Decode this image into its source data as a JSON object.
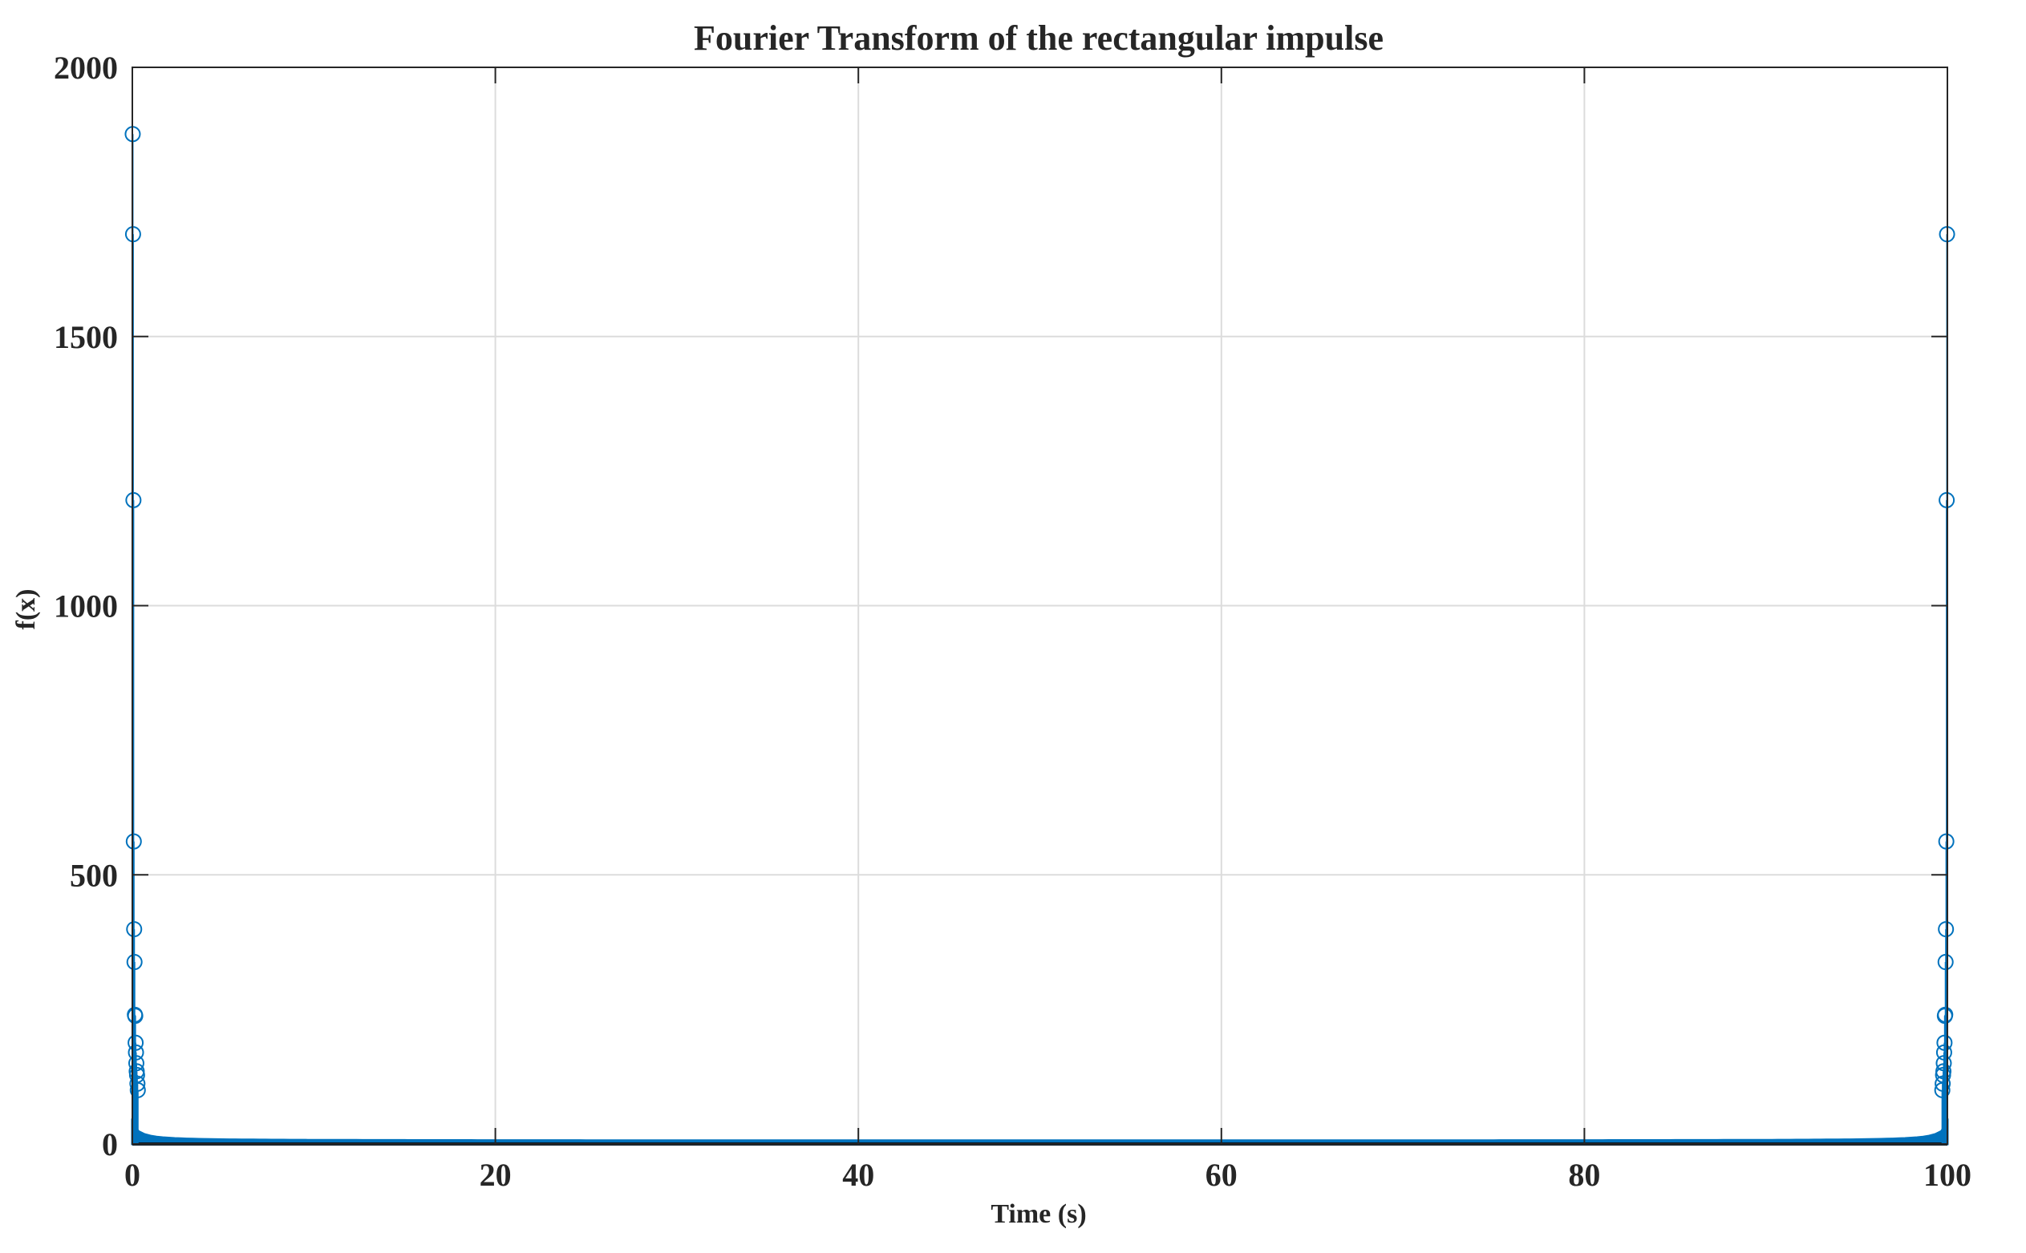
{
  "chart_data": {
    "type": "stem",
    "title": "Fourier Transform of the rectangular impulse",
    "xlabel": "Time (s)",
    "ylabel": "f(x)",
    "xlim": [
      0,
      100
    ],
    "ylim": [
      0,
      2000
    ],
    "xticks": [
      0,
      20,
      40,
      60,
      80,
      100
    ],
    "yticks": [
      0,
      500,
      1000,
      1500,
      2000
    ],
    "xtick_labels": [
      "0",
      "20",
      "40",
      "60",
      "80",
      "100"
    ],
    "ytick_labels": [
      "0",
      "500",
      "1000",
      "1500",
      "2000"
    ],
    "grid": true,
    "marker": "circle-open",
    "series_color": "#0072BD",
    "peaks": [
      {
        "x": 0.02,
        "y": 1876
      },
      {
        "x": 0.04,
        "y": 1690
      },
      {
        "x": 0.06,
        "y": 1196
      },
      {
        "x": 0.08,
        "y": 562
      },
      {
        "x": 0.1,
        "y": 399
      },
      {
        "x": 0.12,
        "y": 338
      },
      {
        "x": 0.14,
        "y": 240
      },
      {
        "x": 0.16,
        "y": 238
      },
      {
        "x": 0.18,
        "y": 188
      },
      {
        "x": 0.2,
        "y": 170
      },
      {
        "x": 0.22,
        "y": 150
      },
      {
        "x": 0.24,
        "y": 135
      },
      {
        "x": 0.26,
        "y": 128
      },
      {
        "x": 0.28,
        "y": 112
      },
      {
        "x": 0.3,
        "y": 100
      },
      {
        "x": 99.98,
        "y": 1690
      },
      {
        "x": 99.96,
        "y": 1196
      },
      {
        "x": 99.94,
        "y": 562
      },
      {
        "x": 99.92,
        "y": 399
      },
      {
        "x": 99.9,
        "y": 338
      },
      {
        "x": 99.88,
        "y": 240
      },
      {
        "x": 99.86,
        "y": 238
      },
      {
        "x": 99.84,
        "y": 188
      },
      {
        "x": 99.82,
        "y": 170
      },
      {
        "x": 99.8,
        "y": 150
      },
      {
        "x": 99.78,
        "y": 135
      },
      {
        "x": 99.76,
        "y": 128
      },
      {
        "x": 99.74,
        "y": 112
      },
      {
        "x": 99.72,
        "y": 100
      }
    ],
    "floor_value": 0
  }
}
